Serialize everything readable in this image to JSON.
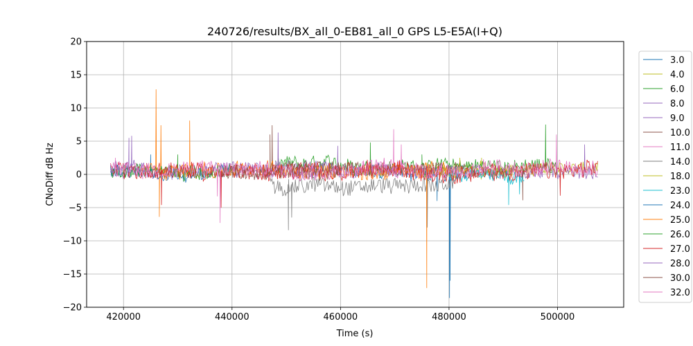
{
  "chart_data": {
    "type": "line",
    "title": "240726/results/BX_all_0-EB81_all_0 GPS L5-E5A(I+Q)",
    "xlabel": "Time (s)",
    "ylabel": "CNoDiff dB Hz",
    "xlim": [
      413200,
      512200
    ],
    "ylim": [
      -20,
      20
    ],
    "xticks": [
      420000,
      440000,
      460000,
      480000,
      500000
    ],
    "yticks": [
      -20,
      -15,
      -10,
      -5,
      0,
      5,
      10,
      15,
      20
    ],
    "grid": true,
    "legend": "right",
    "series": [
      {
        "name": "3.0",
        "color": "#1f77b4",
        "x_range": [
          462000,
          484000
        ],
        "base": 0.3,
        "noise": 1.2,
        "spikes": [
          [
            480100,
            -18.6
          ],
          [
            480200,
            -16.0
          ],
          [
            477800,
            -4.0
          ]
        ]
      },
      {
        "name": "4.0",
        "color": "#bcbd22",
        "x_range": [
          477000,
          507500
        ],
        "base": 0.8,
        "noise": 0.9,
        "spikes": [
          [
            486000,
            2.5
          ]
        ]
      },
      {
        "name": "6.0",
        "color": "#2ca02c",
        "x_range": [
          448000,
          500000
        ],
        "base": 1.2,
        "noise": 1.2,
        "spikes": [
          [
            465500,
            4.8
          ],
          [
            497800,
            7.5
          ],
          [
            475000,
            3.0
          ]
        ]
      },
      {
        "name": "8.0",
        "color": "#9467bd",
        "x_range": [
          417600,
          507500
        ],
        "base": 0.5,
        "noise": 1.0,
        "spikes": [
          [
            421500,
            5.8
          ],
          [
            459500,
            4.3
          ],
          [
            505000,
            4.5
          ]
        ]
      },
      {
        "name": "9.0",
        "color": "#9467bd",
        "x_range": [
          438000,
          460000
        ],
        "base": 0.6,
        "noise": 1.2,
        "spikes": [
          [
            448500,
            6.3
          ]
        ]
      },
      {
        "name": "10.0",
        "color": "#8c564b",
        "x_range": [
          447000,
          494000
        ],
        "base": 0.5,
        "noise": 1.0,
        "spikes": [
          [
            447400,
            7.4
          ],
          [
            493600,
            -3.9
          ]
        ]
      },
      {
        "name": "11.0",
        "color": "#e377c2",
        "x_range": [
          463000,
          472000
        ],
        "base": 1.0,
        "noise": 1.2,
        "spikes": [
          [
            469800,
            6.8
          ],
          [
            471200,
            4.5
          ]
        ]
      },
      {
        "name": "14.0",
        "color": "#7f7f7f",
        "x_range": [
          447000,
          481000
        ],
        "base": -1.5,
        "noise": 1.2,
        "spikes": [
          [
            450400,
            -8.4
          ],
          [
            451000,
            -6.5
          ],
          [
            476000,
            -8.0
          ]
        ]
      },
      {
        "name": "18.0",
        "color": "#bcbd22",
        "x_range": [
          478000,
          492000
        ],
        "base": 0.4,
        "noise": 0.8,
        "spikes": [
          [
            482000,
            2.5
          ]
        ]
      },
      {
        "name": "23.0",
        "color": "#17becf",
        "x_range": [
          480000,
          494000
        ],
        "base": -0.3,
        "noise": 1.0,
        "spikes": [
          [
            491000,
            -4.6
          ],
          [
            493000,
            -3.0
          ]
        ]
      },
      {
        "name": "24.0",
        "color": "#1f77b4",
        "x_range": [
          417600,
          440000
        ],
        "base": 0.4,
        "noise": 1.0,
        "spikes": [
          [
            425000,
            3.0
          ]
        ]
      },
      {
        "name": "25.0",
        "color": "#ff7f0e",
        "x_range": [
          423000,
          480000
        ],
        "base": 0.6,
        "noise": 1.2,
        "spikes": [
          [
            426000,
            12.8
          ],
          [
            426600,
            -6.4
          ],
          [
            432200,
            8.1
          ],
          [
            475900,
            -17.1
          ],
          [
            426900,
            7.4
          ]
        ]
      },
      {
        "name": "26.0",
        "color": "#2ca02c",
        "x_range": [
          417600,
          440000
        ],
        "base": 0.5,
        "noise": 1.0,
        "spikes": [
          [
            430000,
            3.0
          ]
        ]
      },
      {
        "name": "27.0",
        "color": "#d62728",
        "x_range": [
          417600,
          507500
        ],
        "base": 0.5,
        "noise": 1.3,
        "spikes": [
          [
            427000,
            -4.6
          ],
          [
            438000,
            -5.0
          ],
          [
            500500,
            -3.2
          ]
        ]
      },
      {
        "name": "28.0",
        "color": "#9467bd",
        "x_range": [
          417600,
          424000
        ],
        "base": 1.0,
        "noise": 1.2,
        "spikes": [
          [
            421000,
            5.5
          ]
        ]
      },
      {
        "name": "30.0",
        "color": "#8c564b",
        "x_range": [
          438000,
          460000
        ],
        "base": 0.4,
        "noise": 1.0,
        "spikes": [
          [
            447000,
            6.0
          ]
        ]
      },
      {
        "name": "32.0",
        "color": "#e377c2",
        "x_range": [
          417600,
          507500
        ],
        "base": 0.8,
        "noise": 1.2,
        "spikes": [
          [
            437800,
            -7.3
          ],
          [
            437300,
            -3.3
          ],
          [
            499800,
            6.0
          ],
          [
            418500,
            2.5
          ]
        ]
      }
    ]
  }
}
